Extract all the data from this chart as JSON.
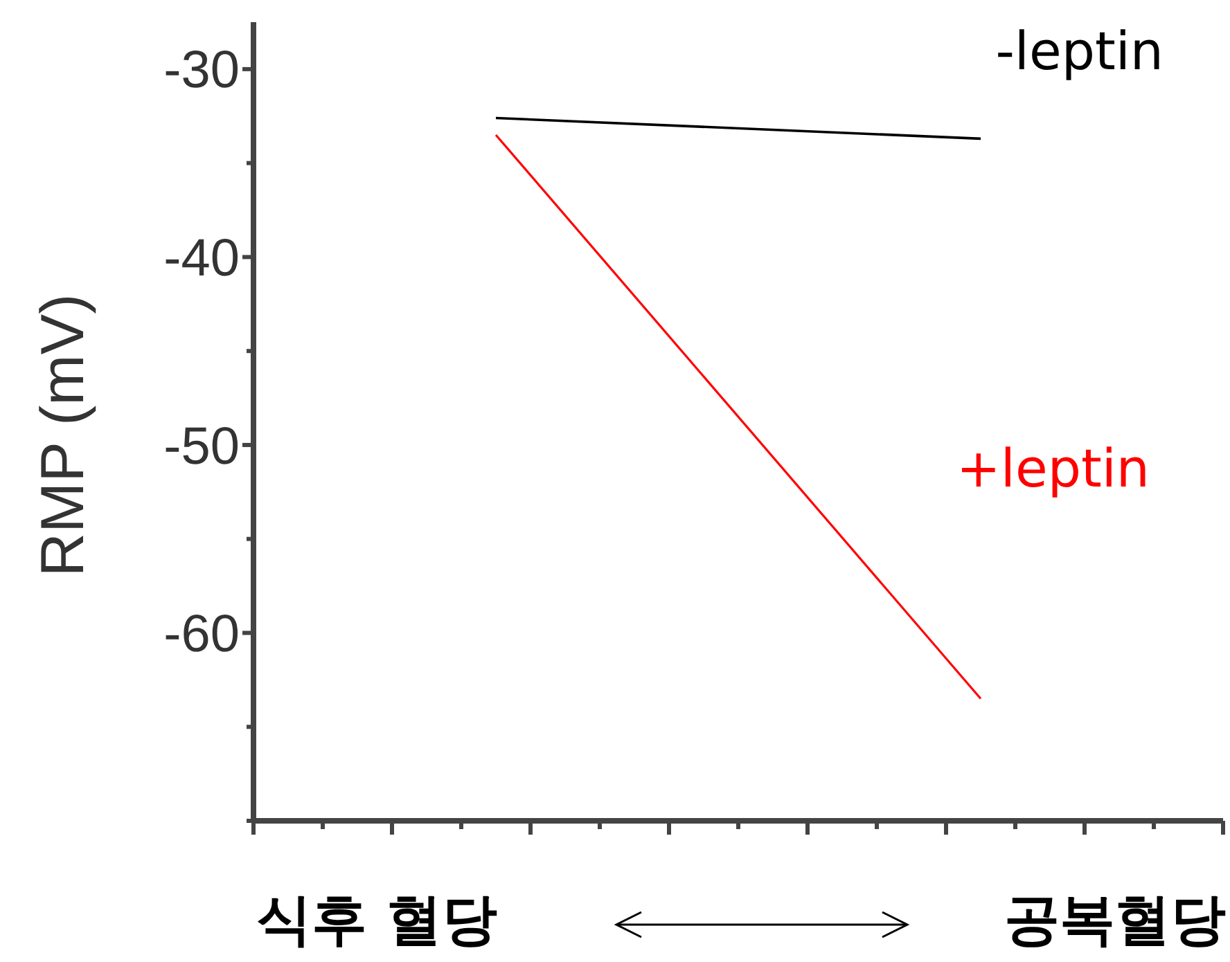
{
  "chart_data": {
    "type": "line",
    "ylabel": "RMP (mV)",
    "annotations": [
      "식후 혈당",
      "공복혈당"
    ],
    "categories": [
      null,
      null
    ],
    "ylim": [
      -70,
      -27.5
    ],
    "yticks": [
      -30,
      {
        "value": -35,
        "label": null
      },
      -40,
      {
        "value": -45,
        "label": null
      },
      -50,
      {
        "value": -55,
        "label": null
      },
      -60,
      {
        "value": -65,
        "label": null
      },
      {
        "value": -70,
        "label": null
      }
    ],
    "tick_labels": "y",
    "grid": false,
    "marker": "none",
    "line_style": "solid",
    "series": [
      {
        "name": "-leptin",
        "color": "#000000",
        "values": [
          -32.6,
          -33.7
        ]
      },
      {
        "name": "+leptin",
        "color": "#ff0000",
        "values": [
          -33.5,
          -63.5
        ]
      }
    ]
  }
}
